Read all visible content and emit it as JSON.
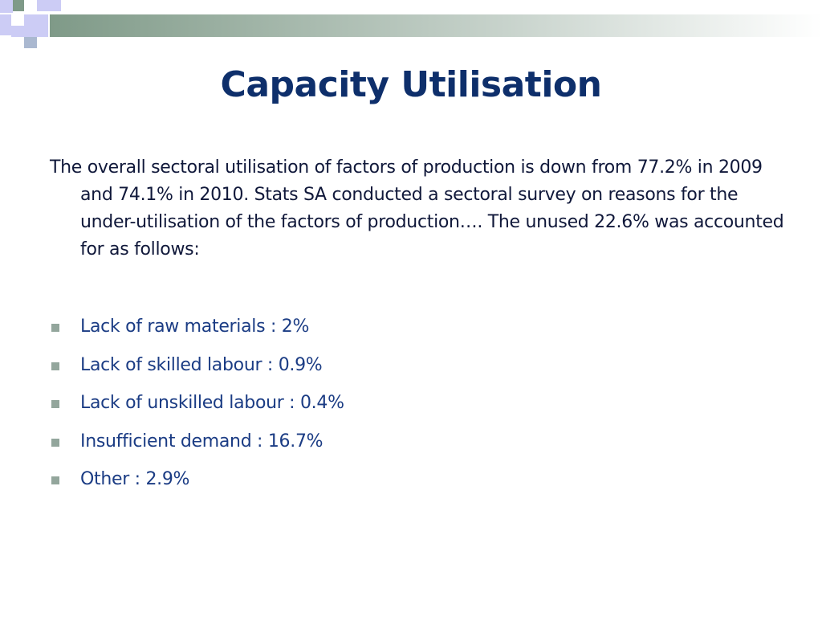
{
  "slide": {
    "title": "Capacity Utilisation",
    "paragraph": "The overall sectoral utilisation of factors of production is down from 77.2% in 2009 and 74.1% in 2010.  Stats SA conducted a sectoral survey on reasons for the under-utilisation of the factors of production…. The unused 22.6% was accounted for as follows:",
    "bullets": [
      "Lack of raw materials : 2%",
      "Lack of skilled labour : 0.9%",
      "Lack of unskilled labour : 0.4%",
      "Insufficient demand : 16.7%",
      "Other : 2.9%"
    ]
  }
}
